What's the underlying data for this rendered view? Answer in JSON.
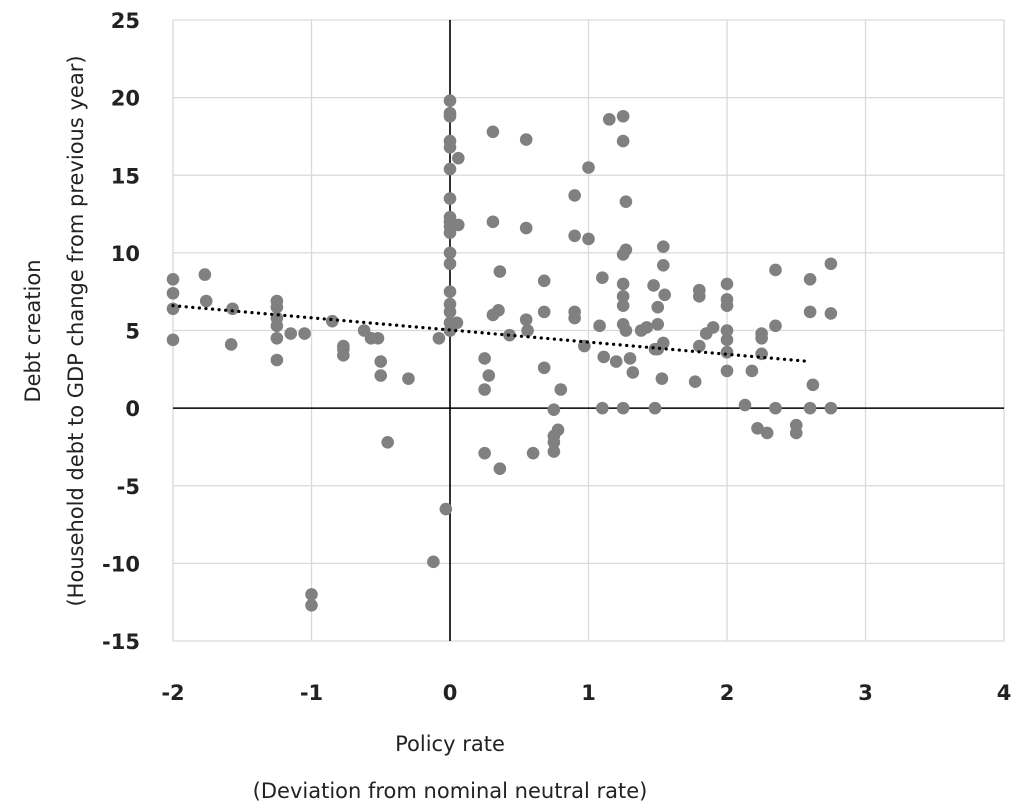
{
  "chart_data": {
    "type": "scatter",
    "xlabel": "Policy rate",
    "xlabel_sub": "(Deviation from nominal neutral rate)",
    "ylabel": "Debt creation",
    "ylabel_sub": "(Household debt to GDP change from previous year)",
    "xlim": [
      -2,
      4
    ],
    "ylim": [
      -15,
      25
    ],
    "xticks": [
      -2,
      -1,
      0,
      1,
      2,
      3,
      4
    ],
    "yticks": [
      -15,
      -10,
      -5,
      0,
      5,
      10,
      15,
      20,
      25
    ],
    "grid": true,
    "legend": "none",
    "colors": {
      "points": "#808080",
      "trendline": "#000000",
      "grid": "#d9d9d9",
      "axes": "#000000"
    },
    "trendline": {
      "style": "dotted",
      "x": [
        -2,
        2.6
      ],
      "y": [
        6.6,
        3.0
      ]
    },
    "points": [
      [
        -2,
        8.3
      ],
      [
        -2,
        7.4
      ],
      [
        -2,
        6.4
      ],
      [
        -2,
        4.4
      ],
      [
        -1.77,
        8.6
      ],
      [
        -1.76,
        6.9
      ],
      [
        -1.57,
        6.4
      ],
      [
        -1.58,
        4.1
      ],
      [
        -1.25,
        6.9
      ],
      [
        -1.25,
        6.5
      ],
      [
        -1.25,
        5.8
      ],
      [
        -1.25,
        5.3
      ],
      [
        -1.25,
        4.5
      ],
      [
        -1.25,
        3.1
      ],
      [
        -1.15,
        4.8
      ],
      [
        -1.05,
        4.8
      ],
      [
        -0.85,
        5.6
      ],
      [
        -0.77,
        4.0
      ],
      [
        -0.77,
        3.8
      ],
      [
        -0.77,
        3.4
      ],
      [
        -0.62,
        5.0
      ],
      [
        -0.57,
        4.5
      ],
      [
        -0.52,
        4.5
      ],
      [
        -0.5,
        3.0
      ],
      [
        -0.5,
        2.1
      ],
      [
        -0.45,
        -2.2
      ],
      [
        -0.3,
        1.9
      ],
      [
        -1,
        -12.0
      ],
      [
        -1,
        -12.7
      ],
      [
        -0.12,
        -9.9
      ],
      [
        -0.08,
        4.5
      ],
      [
        -0.03,
        -6.5
      ],
      [
        0,
        19.8
      ],
      [
        0,
        19.0
      ],
      [
        0,
        18.8
      ],
      [
        0,
        17.2
      ],
      [
        0,
        16.8
      ],
      [
        0,
        15.4
      ],
      [
        0,
        13.5
      ],
      [
        0,
        12.3
      ],
      [
        0,
        12.0
      ],
      [
        0,
        11.7
      ],
      [
        0,
        11.3
      ],
      [
        0,
        10.0
      ],
      [
        0,
        9.3
      ],
      [
        0,
        7.5
      ],
      [
        0,
        6.7
      ],
      [
        0,
        6.2
      ],
      [
        0,
        5.5
      ],
      [
        0,
        5.0
      ],
      [
        0.06,
        16.1
      ],
      [
        0.06,
        11.8
      ],
      [
        0.05,
        5.5
      ],
      [
        0.25,
        3.2
      ],
      [
        0.25,
        1.2
      ],
      [
        0.25,
        -2.9
      ],
      [
        0.28,
        2.1
      ],
      [
        0.31,
        17.8
      ],
      [
        0.31,
        12.0
      ],
      [
        0.31,
        6.0
      ],
      [
        0.35,
        6.3
      ],
      [
        0.36,
        8.8
      ],
      [
        0.36,
        -3.9
      ],
      [
        0.43,
        4.7
      ],
      [
        0.55,
        17.3
      ],
      [
        0.55,
        11.6
      ],
      [
        0.55,
        5.7
      ],
      [
        0.56,
        5.0
      ],
      [
        0.6,
        -2.9
      ],
      [
        0.68,
        8.2
      ],
      [
        0.68,
        6.2
      ],
      [
        0.68,
        2.6
      ],
      [
        0.75,
        -0.1
      ],
      [
        0.75,
        -1.8
      ],
      [
        0.75,
        -2.2
      ],
      [
        0.75,
        -2.8
      ],
      [
        0.78,
        -1.4
      ],
      [
        0.8,
        1.2
      ],
      [
        0.9,
        13.7
      ],
      [
        0.9,
        11.1
      ],
      [
        0.9,
        6.2
      ],
      [
        0.9,
        5.8
      ],
      [
        0.97,
        4.0
      ],
      [
        1.0,
        15.5
      ],
      [
        1.0,
        10.9
      ],
      [
        1.08,
        5.3
      ],
      [
        1.1,
        0
      ],
      [
        1.1,
        8.4
      ],
      [
        1.11,
        3.3
      ],
      [
        1.15,
        18.6
      ],
      [
        1.2,
        3.0
      ],
      [
        1.25,
        18.8
      ],
      [
        1.25,
        17.2
      ],
      [
        1.25,
        9.9
      ],
      [
        1.25,
        8.0
      ],
      [
        1.25,
        7.2
      ],
      [
        1.25,
        6.6
      ],
      [
        1.25,
        5.4
      ],
      [
        1.25,
        0
      ],
      [
        1.27,
        13.3
      ],
      [
        1.27,
        10.2
      ],
      [
        1.27,
        5.0
      ],
      [
        1.3,
        3.2
      ],
      [
        1.32,
        2.3
      ],
      [
        1.38,
        5.0
      ],
      [
        1.42,
        5.2
      ],
      [
        1.48,
        0
      ],
      [
        1.47,
        7.9
      ],
      [
        1.48,
        3.8
      ],
      [
        1.5,
        6.5
      ],
      [
        1.5,
        5.4
      ],
      [
        1.5,
        3.8
      ],
      [
        1.54,
        10.4
      ],
      [
        1.54,
        9.2
      ],
      [
        1.54,
        4.2
      ],
      [
        1.55,
        7.3
      ],
      [
        1.53,
        1.9
      ],
      [
        1.77,
        1.7
      ],
      [
        1.8,
        7.6
      ],
      [
        1.8,
        7.2
      ],
      [
        1.8,
        4.0
      ],
      [
        1.85,
        4.8
      ],
      [
        1.9,
        5.2
      ],
      [
        2.0,
        8.0
      ],
      [
        2.0,
        7.0
      ],
      [
        2.0,
        6.6
      ],
      [
        2.0,
        5.0
      ],
      [
        2.0,
        4.4
      ],
      [
        2.0,
        3.6
      ],
      [
        2.0,
        2.4
      ],
      [
        2.13,
        0.2
      ],
      [
        2.18,
        2.4
      ],
      [
        2.22,
        -1.3
      ],
      [
        2.25,
        4.8
      ],
      [
        2.25,
        4.5
      ],
      [
        2.25,
        3.5
      ],
      [
        2.29,
        -1.6
      ],
      [
        2.35,
        8.9
      ],
      [
        2.35,
        5.3
      ],
      [
        2.35,
        0
      ],
      [
        2.5,
        -1.1
      ],
      [
        2.5,
        -1.6
      ],
      [
        2.6,
        8.3
      ],
      [
        2.6,
        6.2
      ],
      [
        2.6,
        0
      ],
      [
        2.62,
        1.5
      ],
      [
        2.75,
        9.3
      ],
      [
        2.75,
        6.1
      ],
      [
        2.75,
        0
      ]
    ]
  }
}
